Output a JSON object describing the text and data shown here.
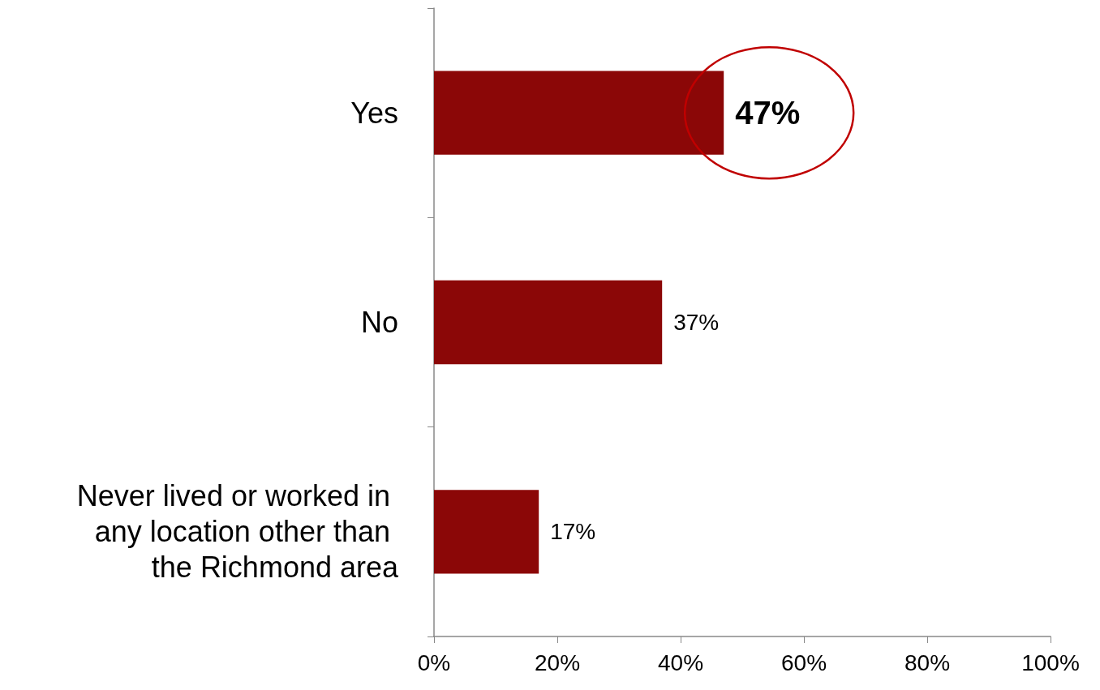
{
  "chart_data": {
    "type": "bar",
    "orientation": "horizontal",
    "categories": [
      "Yes",
      "No",
      "Never lived or worked in any location other than the Richmond area"
    ],
    "values": [
      47,
      37,
      17
    ],
    "color": "#8b0707",
    "value_labels": [
      "47%",
      "37%",
      "17%"
    ],
    "xlim": [
      0,
      100
    ],
    "xticks": [
      {
        "value": 0,
        "label": "0%"
      },
      {
        "value": 20,
        "label": "20%"
      },
      {
        "value": 40,
        "label": "40%"
      },
      {
        "value": 60,
        "label": "60%"
      },
      {
        "value": 80,
        "label": "80%"
      },
      {
        "value": 100,
        "label": "100%"
      }
    ],
    "grid": false
  }
}
